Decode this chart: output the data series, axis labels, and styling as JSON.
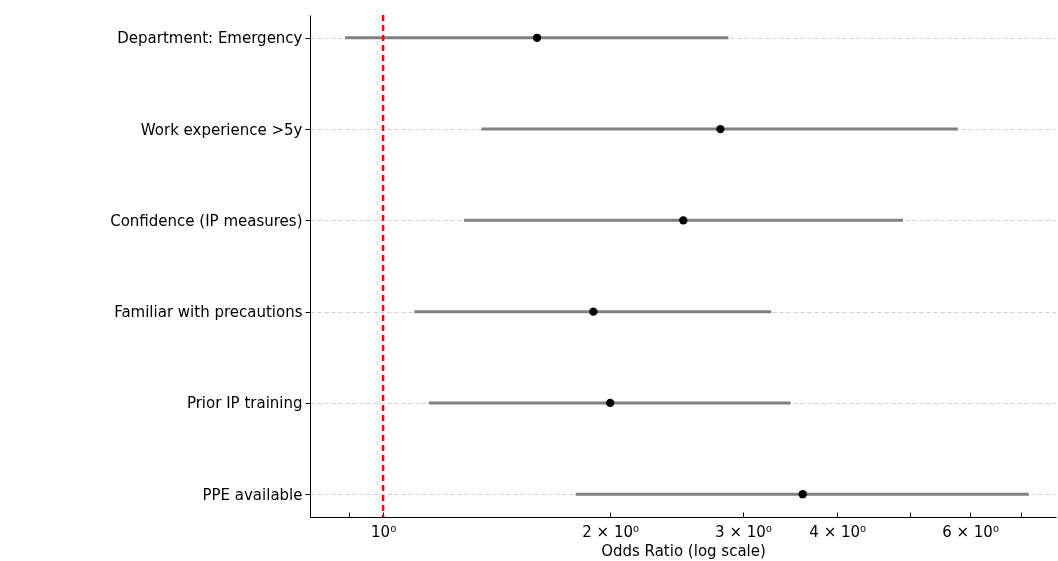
{
  "chart_data": {
    "type": "scatter",
    "orientation": "horizontal",
    "xlabel": "Odds Ratio (log scale)",
    "log": "x",
    "categories": [
      "Department: Emergency",
      "Work experience >5y",
      "Confidence (IP measures)",
      "Familiar with precautions",
      "Prior IP training",
      "PPE available"
    ],
    "series": [
      {
        "color": "#000000",
        "values": [
          1.6,
          2.8,
          2.5,
          1.9,
          2.0,
          3.6
        ],
        "errors": [
          [
            0.89,
            2.87
          ],
          [
            1.35,
            5.78
          ],
          [
            1.28,
            4.89
          ],
          [
            1.1,
            3.27
          ],
          [
            1.15,
            3.47
          ],
          [
            1.8,
            7.18
          ]
        ]
      }
    ],
    "xlim": [
      0.8,
      7.8
    ],
    "xticks": [
      {
        "value": 0.9,
        "label": null
      },
      {
        "value": 1,
        "label": "10⁰"
      },
      {
        "value": 2,
        "label": "2 × 10⁰"
      },
      {
        "value": 3,
        "label": "3 × 10⁰"
      },
      {
        "value": 4,
        "label": "4 × 10⁰"
      },
      {
        "value": 5,
        "label": null
      },
      {
        "value": 6,
        "label": "6 × 10⁰"
      },
      {
        "value": 7,
        "label": null
      }
    ],
    "ref_lines": [
      {
        "axis": "x",
        "value": 1,
        "color": "#ff0000",
        "line_style": "dashed"
      }
    ],
    "grid": "y",
    "marker": "circle"
  }
}
